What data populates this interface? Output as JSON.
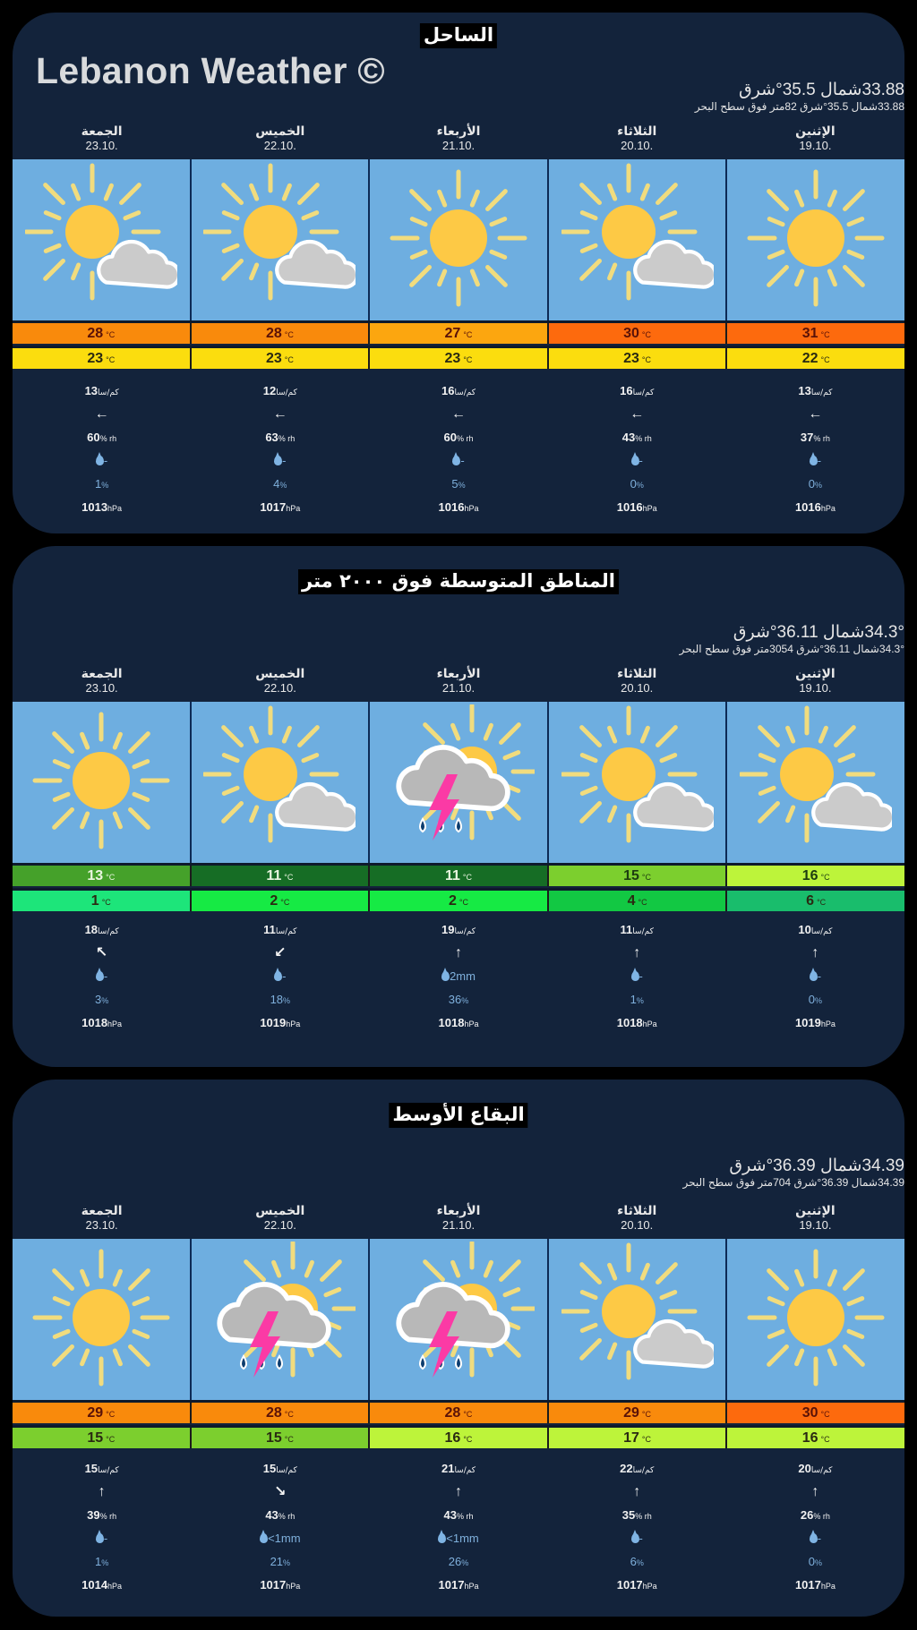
{
  "app": {
    "brand": "Lebanon Weather ©"
  },
  "units": {
    "temp": "°C",
    "wind": "كم/سا",
    "humidity": "% rh",
    "percent": "%",
    "pressure": "hPa",
    "precip_mm": "mm"
  },
  "sections": [
    {
      "title": "الساحل",
      "coords_main": "33.88شمال 35.5°شرق",
      "coords_sub": "33.88شمال 35.5°شرق 82متر فوق سطح البحر",
      "days": [
        {
          "name": "الجمعة",
          "date": "23.10.",
          "icon": "sun-cloud",
          "max": "28",
          "min": "23",
          "max_color": "#f98a0c",
          "min_color": "#fbdd0e",
          "wind": "13",
          "wind_dir": "←",
          "humidity": "60",
          "precip": "-",
          "prob": "1",
          "pressure": "1013"
        },
        {
          "name": "الخميس",
          "date": "22.10.",
          "icon": "sun-cloud",
          "max": "28",
          "min": "23",
          "max_color": "#f98a0c",
          "min_color": "#fbdd0e",
          "wind": "12",
          "wind_dir": "←",
          "humidity": "63",
          "precip": "-",
          "prob": "4",
          "pressure": "1017"
        },
        {
          "name": "الأربعاء",
          "date": "21.10.",
          "icon": "sun",
          "max": "27",
          "min": "23",
          "max_color": "#fca60f",
          "min_color": "#fbdd0e",
          "wind": "16",
          "wind_dir": "←",
          "humidity": "60",
          "precip": "-",
          "prob": "5",
          "pressure": "1016"
        },
        {
          "name": "الثلاثاء",
          "date": "20.10.",
          "icon": "sun-cloud",
          "max": "30",
          "min": "23",
          "max_color": "#fd6a0d",
          "min_color": "#fbdd0e",
          "wind": "16",
          "wind_dir": "←",
          "humidity": "43",
          "precip": "-",
          "prob": "0",
          "pressure": "1016"
        },
        {
          "name": "الإثنين",
          "date": "19.10.",
          "icon": "sun",
          "max": "31",
          "min": "22",
          "max_color": "#fd6a0d",
          "min_color": "#fbdd0e",
          "wind": "13",
          "wind_dir": "←",
          "humidity": "37",
          "precip": "-",
          "prob": "0",
          "pressure": "1016"
        }
      ]
    },
    {
      "title": "المناطق المتوسطة فوق ٢٠٠٠ متر",
      "coords_main": "34.3°شمال 36.11°شرق",
      "coords_sub": "34.3°شمال 36.11°شرق 3054متر فوق سطح البحر",
      "days": [
        {
          "name": "الجمعة",
          "date": "23.10.",
          "icon": "sun",
          "max": "13",
          "min": "1",
          "max_color": "#45a12a",
          "min_color": "#1de57a",
          "wind": "18",
          "wind_dir": "↖",
          "precip": "-",
          "prob": "3",
          "pressure": "1018"
        },
        {
          "name": "الخميس",
          "date": "22.10.",
          "icon": "sun-cloud",
          "max": "11",
          "min": "2",
          "max_color": "#166d25",
          "min_color": "#16ea44",
          "wind": "11",
          "wind_dir": "↙",
          "precip": "-",
          "prob": "18",
          "pressure": "1019"
        },
        {
          "name": "الأربعاء",
          "date": "21.10.",
          "icon": "storm",
          "max": "11",
          "min": "2",
          "max_color": "#166d25",
          "min_color": "#16ea44",
          "wind": "19",
          "wind_dir": "↑",
          "precip": "2mm",
          "prob": "36",
          "pressure": "1018"
        },
        {
          "name": "الثلاثاء",
          "date": "20.10.",
          "icon": "sun-cloud",
          "max": "15",
          "min": "4",
          "max_color": "#7ccf2e",
          "min_color": "#12c843",
          "wind": "11",
          "wind_dir": "↑",
          "precip": "-",
          "prob": "1",
          "pressure": "1018"
        },
        {
          "name": "الإثنين",
          "date": "19.10.",
          "icon": "sun-cloud",
          "max": "16",
          "min": "6",
          "max_color": "#bdf43a",
          "min_color": "#19bd6c",
          "wind": "10",
          "wind_dir": "↑",
          "precip": "-",
          "prob": "0",
          "pressure": "1019"
        }
      ]
    },
    {
      "title": "البقاع الأوسط",
      "coords_main": "34.39شمال 36.39°شرق",
      "coords_sub": "34.39شمال 36.39°شرق 704متر فوق سطح البحر",
      "days": [
        {
          "name": "الجمعة",
          "date": "23.10.",
          "icon": "sun",
          "max": "29",
          "min": "15",
          "max_color": "#f98a0c",
          "min_color": "#7ccf2e",
          "wind": "15",
          "wind_dir": "↑",
          "humidity": "39",
          "precip": "-",
          "prob": "1",
          "pressure": "1014"
        },
        {
          "name": "الخميس",
          "date": "22.10.",
          "icon": "storm",
          "max": "28",
          "min": "15",
          "max_color": "#f98a0c",
          "min_color": "#7ccf2e",
          "wind": "15",
          "wind_dir": "↘",
          "humidity": "43",
          "precip": "<1mm",
          "prob": "21",
          "pressure": "1017"
        },
        {
          "name": "الأربعاء",
          "date": "21.10.",
          "icon": "storm",
          "max": "28",
          "min": "16",
          "max_color": "#f98a0c",
          "min_color": "#bdf43a",
          "wind": "21",
          "wind_dir": "↑",
          "humidity": "43",
          "precip": "<1mm",
          "prob": "26",
          "pressure": "1017"
        },
        {
          "name": "الثلاثاء",
          "date": "20.10.",
          "icon": "sun-cloud",
          "max": "29",
          "min": "17",
          "max_color": "#f98a0c",
          "min_color": "#bdf43a",
          "wind": "22",
          "wind_dir": "↑",
          "humidity": "35",
          "precip": "-",
          "prob": "6",
          "pressure": "1017"
        },
        {
          "name": "الإثنين",
          "date": "19.10.",
          "icon": "sun",
          "max": "30",
          "min": "16",
          "max_color": "#fd6a0d",
          "min_color": "#bdf43a",
          "wind": "20",
          "wind_dir": "↑",
          "humidity": "26",
          "precip": "-",
          "prob": "0",
          "pressure": "1017"
        }
      ]
    }
  ]
}
